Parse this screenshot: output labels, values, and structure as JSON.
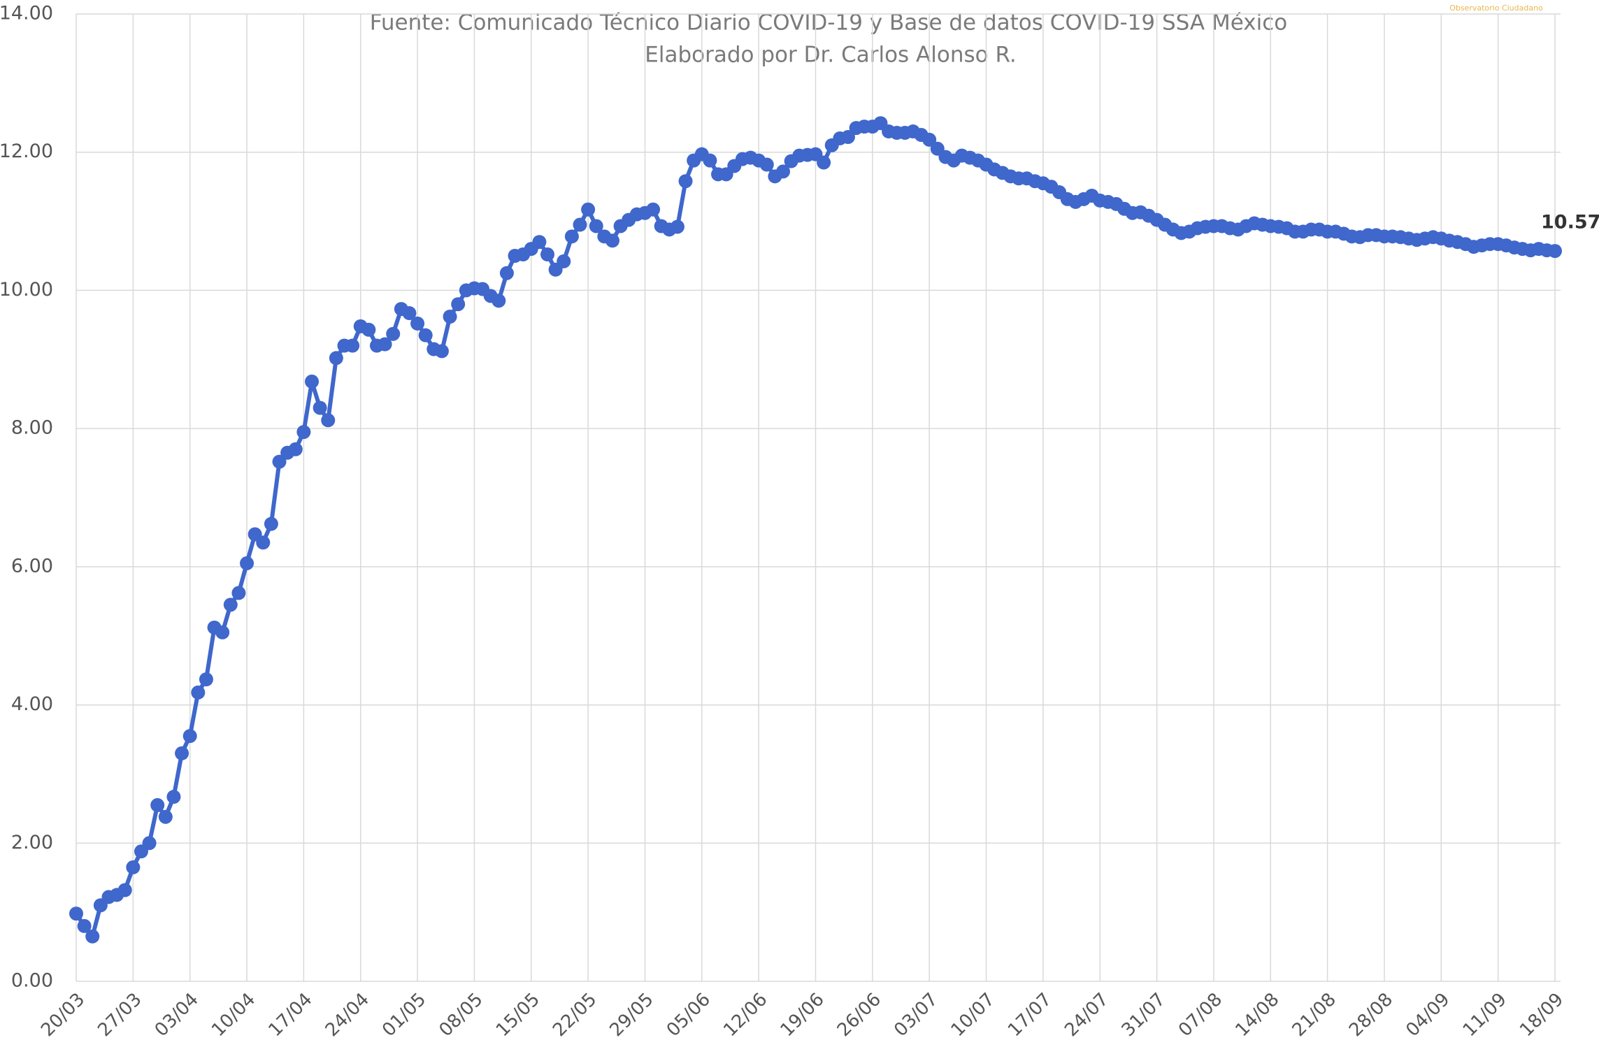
{
  "chart_data": {
    "type": "line",
    "subtitle": [
      "Fuente: Comunicado Técnico Diario COVID-19 y Base de datos COVID-19 SSA México",
      "Elaborado por Dr. Carlos Alonso R."
    ],
    "logo_text": "Observatorio Ciudadano",
    "categories": [
      "20/03",
      null,
      null,
      null,
      null,
      null,
      null,
      "27/03",
      null,
      null,
      null,
      null,
      null,
      null,
      "03/04",
      null,
      null,
      null,
      null,
      null,
      null,
      "10/04",
      null,
      null,
      null,
      null,
      null,
      null,
      "17/04",
      null,
      null,
      null,
      null,
      null,
      null,
      "24/04",
      null,
      null,
      null,
      null,
      null,
      null,
      "01/05",
      null,
      null,
      null,
      null,
      null,
      null,
      "08/05",
      null,
      null,
      null,
      null,
      null,
      null,
      "15/05",
      null,
      null,
      null,
      null,
      null,
      null,
      "22/05",
      null,
      null,
      null,
      null,
      null,
      null,
      "29/05",
      null,
      null,
      null,
      null,
      null,
      null,
      "05/06",
      null,
      null,
      null,
      null,
      null,
      null,
      "12/06",
      null,
      null,
      null,
      null,
      null,
      null,
      "19/06",
      null,
      null,
      null,
      null,
      null,
      null,
      "26/06",
      null,
      null,
      null,
      null,
      null,
      null,
      "03/07",
      null,
      null,
      null,
      null,
      null,
      null,
      "10/07",
      null,
      null,
      null,
      null,
      null,
      null,
      "17/07",
      null,
      null,
      null,
      null,
      null,
      null,
      "24/07",
      null,
      null,
      null,
      null,
      null,
      null,
      "31/07",
      null,
      null,
      null,
      null,
      null,
      null,
      "07/08",
      null,
      null,
      null,
      null,
      null,
      null,
      "14/08",
      null,
      null,
      null,
      null,
      null,
      null,
      "21/08",
      null,
      null,
      null,
      null,
      null,
      null,
      "28/08",
      null,
      null,
      null,
      null,
      null,
      null,
      "04/09",
      null,
      null,
      null,
      null,
      null,
      null,
      "11/09",
      null,
      null,
      null,
      null,
      null,
      null,
      "18/09"
    ],
    "series": [
      {
        "color": "#3f67cc",
        "values": [
          0.98,
          0.8,
          0.65,
          1.1,
          1.22,
          1.25,
          1.32,
          1.65,
          1.88,
          2.0,
          2.55,
          2.38,
          2.67,
          3.3,
          3.55,
          4.18,
          4.37,
          5.12,
          5.05,
          5.45,
          5.62,
          6.05,
          6.47,
          6.35,
          6.62,
          7.52,
          7.65,
          7.7,
          7.95,
          8.68,
          8.3,
          8.12,
          9.02,
          9.2,
          9.2,
          9.48,
          9.43,
          9.2,
          9.22,
          9.37,
          9.73,
          9.67,
          9.52,
          9.35,
          9.15,
          9.12,
          9.62,
          9.8,
          10.0,
          10.03,
          10.02,
          9.92,
          9.85,
          10.25,
          10.5,
          10.52,
          10.6,
          10.7,
          10.52,
          10.3,
          10.42,
          10.78,
          10.95,
          11.17,
          10.93,
          10.78,
          10.72,
          10.93,
          11.02,
          11.1,
          11.12,
          11.17,
          10.93,
          10.88,
          10.92,
          11.58,
          11.88,
          11.97,
          11.88,
          11.68,
          11.68,
          11.8,
          11.9,
          11.92,
          11.88,
          11.82,
          11.65,
          11.72,
          11.87,
          11.95,
          11.96,
          11.97,
          11.85,
          12.1,
          12.2,
          12.22,
          12.35,
          12.37,
          12.37,
          12.42,
          12.3,
          12.28,
          12.28,
          12.3,
          12.25,
          12.18,
          12.05,
          11.93,
          11.88,
          11.95,
          11.92,
          11.88,
          11.82,
          11.75,
          11.7,
          11.65,
          11.62,
          11.62,
          11.58,
          11.55,
          11.5,
          11.42,
          11.32,
          11.28,
          11.32,
          11.37,
          11.3,
          11.28,
          11.25,
          11.18,
          11.12,
          11.13,
          11.08,
          11.02,
          10.95,
          10.88,
          10.83,
          10.85,
          10.9,
          10.92,
          10.93,
          10.93,
          10.9,
          10.88,
          10.93,
          10.97,
          10.95,
          10.93,
          10.92,
          10.9,
          10.85,
          10.85,
          10.88,
          10.88,
          10.85,
          10.85,
          10.82,
          10.78,
          10.77,
          10.8,
          10.8,
          10.78,
          10.78,
          10.77,
          10.75,
          10.73,
          10.75,
          10.77,
          10.75,
          10.72,
          10.7,
          10.67,
          10.63,
          10.65,
          10.67,
          10.67,
          10.65,
          10.62,
          10.6,
          10.58,
          10.6,
          10.58,
          10.57
        ]
      }
    ],
    "ylim": [
      0,
      14
    ],
    "yticks": [
      {
        "value": 0,
        "label": "0.00"
      },
      {
        "value": 2,
        "label": "2.00"
      },
      {
        "value": 4,
        "label": "4.00"
      },
      {
        "value": 6,
        "label": "6.00"
      },
      {
        "value": 8,
        "label": "8.00"
      },
      {
        "value": 10,
        "label": "10.00"
      },
      {
        "value": 12,
        "label": "12.00"
      },
      {
        "value": 14,
        "label": "14.00"
      }
    ],
    "grid": true
  }
}
